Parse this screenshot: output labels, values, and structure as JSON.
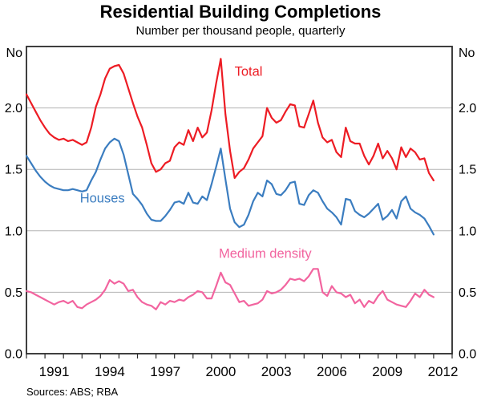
{
  "header": {
    "title": "Residential Building Completions",
    "subtitle": "Number per thousand people, quarterly"
  },
  "footer": {
    "sources": "Sources: ABS; RBA"
  },
  "chart_data": {
    "type": "line",
    "title": "Residential Building Completions",
    "subtitle": "Number per thousand people, quarterly",
    "y_axis_unit": "No",
    "grid": "horizontal",
    "legend_position": "inline-annotations",
    "xlim": [
      1990,
      2013
    ],
    "ylim": [
      0,
      2.5
    ],
    "x_start": 1990.0,
    "x_step": 0.25,
    "frequency": "quarterly",
    "y_ticks": [
      0.0,
      0.5,
      1.0,
      1.5,
      2.0
    ],
    "y_tick_labels": [
      "0.0",
      "0.5",
      "1.0",
      "1.5",
      "2.0"
    ],
    "x_tick_labels": [
      "1991",
      "1994",
      "1997",
      "2000",
      "2003",
      "2006",
      "2009",
      "2012"
    ],
    "colors": {
      "total": "#ed1c24",
      "houses": "#3b7dc0",
      "medium_density": "#f2649f",
      "gridline": "#b3b3b3",
      "frame": "#2a2a2a"
    },
    "series": [
      {
        "name": "Total",
        "color": "#ed1c24",
        "values": [
          2.11,
          2.04,
          1.97,
          1.9,
          1.84,
          1.79,
          1.76,
          1.74,
          1.75,
          1.73,
          1.74,
          1.72,
          1.7,
          1.72,
          1.84,
          2.01,
          2.11,
          2.24,
          2.32,
          2.34,
          2.35,
          2.28,
          2.16,
          2.04,
          1.93,
          1.84,
          1.7,
          1.55,
          1.48,
          1.5,
          1.55,
          1.57,
          1.68,
          1.72,
          1.7,
          1.82,
          1.73,
          1.84,
          1.76,
          1.8,
          1.98,
          2.2,
          2.4,
          1.95,
          1.65,
          1.43,
          1.48,
          1.51,
          1.58,
          1.67,
          1.72,
          1.77,
          2.0,
          1.92,
          1.88,
          1.9,
          1.97,
          2.03,
          2.02,
          1.85,
          1.84,
          1.95,
          2.06,
          1.88,
          1.76,
          1.72,
          1.74,
          1.64,
          1.6,
          1.84,
          1.73,
          1.71,
          1.71,
          1.61,
          1.54,
          1.61,
          1.71,
          1.59,
          1.65,
          1.59,
          1.5,
          1.68,
          1.6,
          1.67,
          1.64,
          1.58,
          1.59,
          1.47,
          1.41
        ]
      },
      {
        "name": "Houses",
        "color": "#3b7dc0",
        "values": [
          1.61,
          1.55,
          1.49,
          1.44,
          1.4,
          1.37,
          1.35,
          1.34,
          1.33,
          1.33,
          1.34,
          1.33,
          1.32,
          1.33,
          1.41,
          1.48,
          1.58,
          1.67,
          1.72,
          1.75,
          1.73,
          1.62,
          1.46,
          1.3,
          1.26,
          1.21,
          1.14,
          1.09,
          1.08,
          1.08,
          1.12,
          1.17,
          1.23,
          1.24,
          1.22,
          1.31,
          1.23,
          1.22,
          1.28,
          1.25,
          1.38,
          1.52,
          1.67,
          1.42,
          1.18,
          1.07,
          1.03,
          1.05,
          1.13,
          1.24,
          1.31,
          1.28,
          1.41,
          1.38,
          1.3,
          1.29,
          1.33,
          1.39,
          1.4,
          1.22,
          1.21,
          1.29,
          1.33,
          1.31,
          1.24,
          1.18,
          1.15,
          1.11,
          1.05,
          1.26,
          1.25,
          1.16,
          1.13,
          1.11,
          1.14,
          1.18,
          1.22,
          1.09,
          1.12,
          1.17,
          1.1,
          1.24,
          1.28,
          1.18,
          1.15,
          1.13,
          1.1,
          1.04,
          0.97
        ]
      },
      {
        "name": "Medium density",
        "color": "#f2649f",
        "values": [
          0.51,
          0.5,
          0.48,
          0.46,
          0.44,
          0.42,
          0.4,
          0.42,
          0.43,
          0.41,
          0.43,
          0.38,
          0.37,
          0.4,
          0.42,
          0.44,
          0.47,
          0.52,
          0.6,
          0.57,
          0.59,
          0.57,
          0.51,
          0.52,
          0.46,
          0.42,
          0.4,
          0.39,
          0.36,
          0.42,
          0.4,
          0.43,
          0.42,
          0.44,
          0.43,
          0.46,
          0.48,
          0.51,
          0.5,
          0.45,
          0.45,
          0.55,
          0.66,
          0.58,
          0.56,
          0.49,
          0.42,
          0.43,
          0.39,
          0.4,
          0.41,
          0.44,
          0.51,
          0.49,
          0.5,
          0.52,
          0.56,
          0.61,
          0.6,
          0.61,
          0.59,
          0.63,
          0.69,
          0.69,
          0.5,
          0.47,
          0.55,
          0.5,
          0.49,
          0.46,
          0.48,
          0.41,
          0.44,
          0.38,
          0.43,
          0.41,
          0.47,
          0.51,
          0.44,
          0.42,
          0.4,
          0.39,
          0.38,
          0.43,
          0.49,
          0.46,
          0.52,
          0.48,
          0.46
        ]
      }
    ],
    "annotations": [
      {
        "text": "Total",
        "x": 2002.0,
        "y": 2.3,
        "color": "#ed1c24"
      },
      {
        "text": "Houses",
        "x": 1994.1,
        "y": 1.27,
        "color": "#3b7dc0"
      },
      {
        "text": "Medium density",
        "x": 2002.9,
        "y": 0.82,
        "color": "#f2649f"
      }
    ]
  }
}
